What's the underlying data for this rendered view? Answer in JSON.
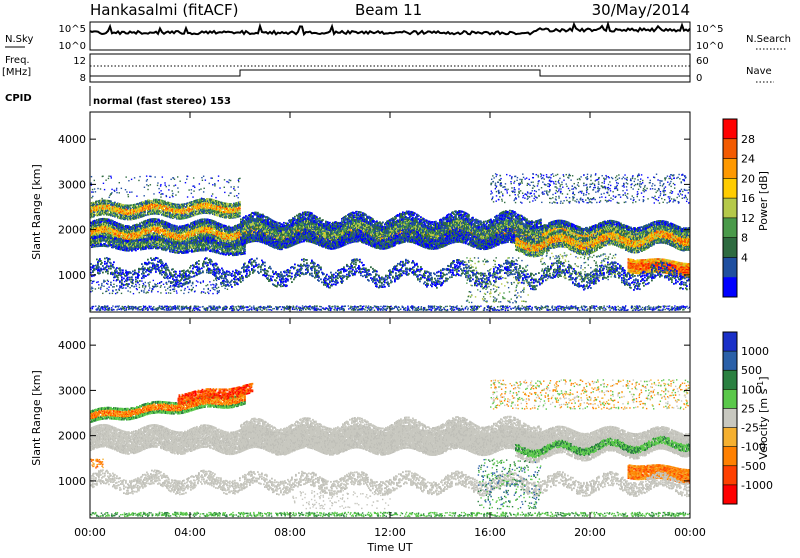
{
  "header": {
    "station": "Hankasalmi (fitACF)",
    "beam": "Beam 11",
    "date": "30/May/2014"
  },
  "top_panels": {
    "nsky_label": "N.Sky",
    "nsearch_label": "N.Search",
    "nsky_ticks": [
      "10^5",
      "10^0"
    ],
    "nsearch_ticks": [
      "10^5",
      "10^0"
    ],
    "freq_label_line1": "Freq.",
    "freq_label_line2": "[MHz]",
    "freq_ticks": [
      "12",
      "8"
    ],
    "nave_label": "Nave",
    "nave_ticks": [
      "60",
      "0"
    ],
    "cpid_label": "CPID",
    "cpid_text": "normal (fast stereo) 153"
  },
  "chart_data": [
    {
      "type": "heatmap",
      "name": "power-panel",
      "ylabel": "Slant Range [km]",
      "yticks": [
        1000,
        2000,
        3000,
        4000
      ],
      "ylim": [
        180,
        4600
      ],
      "xlim": [
        0,
        24
      ],
      "colorbar_label": "Power [dB]",
      "colorbar_ticks": [
        "28",
        "24",
        "20",
        "16",
        "12",
        "8",
        "4"
      ],
      "colorbar_colors": [
        "#ff0000",
        "#f35a00",
        "#ff9900",
        "#ffcc00",
        "#b5c94a",
        "#4a9a4a",
        "#2e6b40",
        "#1f4fa0",
        "#0000ff"
      ]
    },
    {
      "type": "heatmap",
      "name": "velocity-panel",
      "ylabel": "Slant Range [km]",
      "yticks": [
        1000,
        2000,
        3000,
        4000
      ],
      "ylim": [
        180,
        4600
      ],
      "xlim": [
        0,
        24
      ],
      "xlabel": "Time UT",
      "xticks": [
        "00:00",
        "04:00",
        "08:00",
        "12:00",
        "16:00",
        "20:00",
        "00:00"
      ],
      "colorbar_label_main": "Velocity",
      "colorbar_label_unit": "[m s",
      "colorbar_label_exp": "-1",
      "colorbar_label_close": "]",
      "colorbar_ticks": [
        "1000",
        "500",
        "100",
        "25",
        "-25",
        "-100",
        "-500",
        "-1000"
      ],
      "colorbar_colors": [
        "#1a30c8",
        "#2a60a8",
        "#2a8040",
        "#5ac84a",
        "#c8c8c0",
        "#f5b030",
        "#ff8000",
        "#ff4000",
        "#ff0000"
      ]
    }
  ]
}
